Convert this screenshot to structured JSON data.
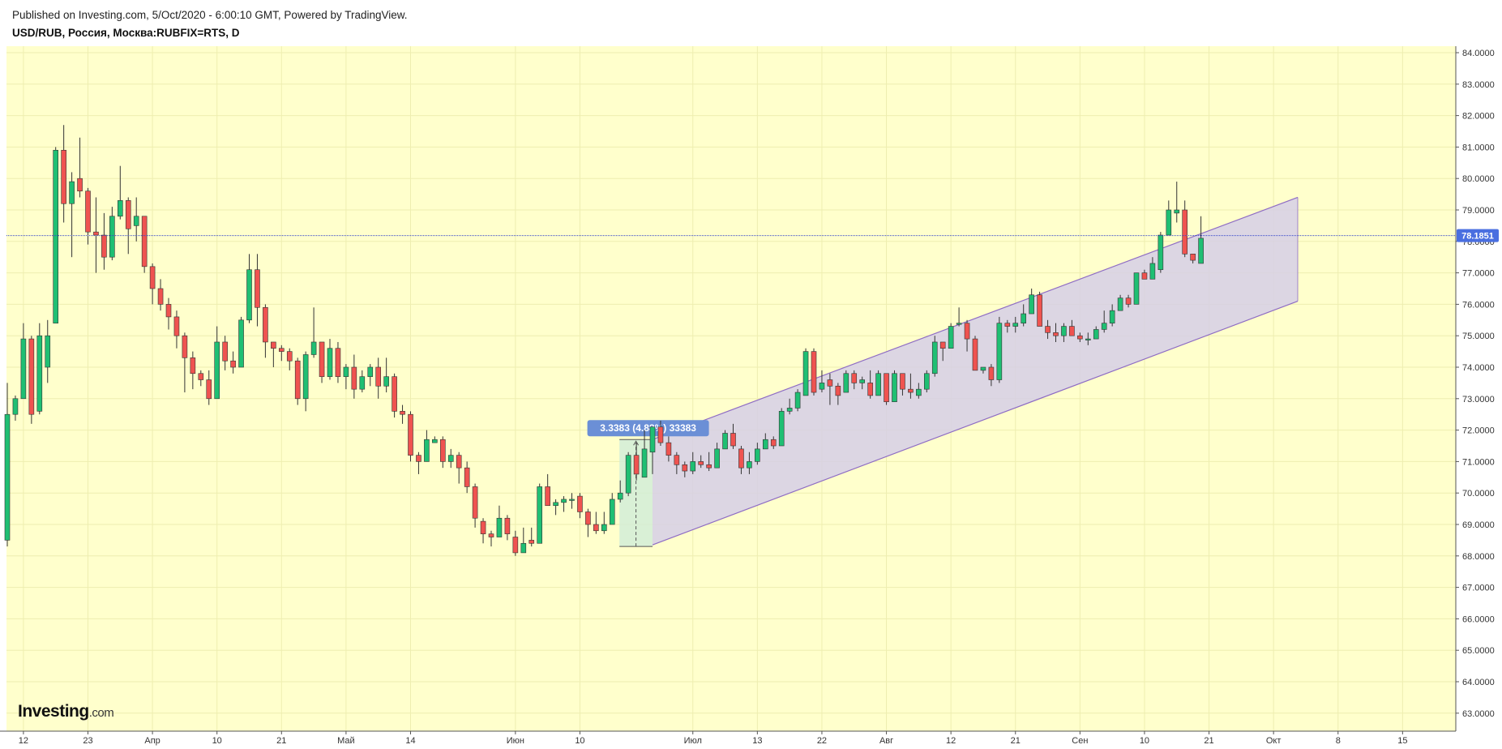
{
  "header": {
    "published": "Published on Investing.com, 5/Oct/2020 - 6:00:10 GMT, Powered by TradingView.",
    "symbol": "USD/RUB, Россия, Москва:RUBFIX=RTS, D"
  },
  "brand": {
    "name": "Investing",
    "suffix": ".com"
  },
  "colors": {
    "background": "#ffffcc",
    "up": "#1fbf73",
    "down": "#ef5350",
    "wick": "#333333",
    "channel_fill": "#d6cfe6",
    "channel_line": "#8e6cc4",
    "price_line": "#3344cc",
    "price_badge": "#4a6fe0",
    "measure_fill": "#d0ecd8",
    "measure_badge": "#6b8fd6"
  },
  "chart_data": {
    "type": "candlestick",
    "interval": "D",
    "ylim": [
      62.6,
      85.1
    ],
    "y_ticks": [
      "63.0000",
      "64.0000",
      "65.0000",
      "66.0000",
      "67.0000",
      "68.0000",
      "69.0000",
      "70.0000",
      "71.0000",
      "72.0000",
      "73.0000",
      "74.0000",
      "75.0000",
      "76.0000",
      "77.0000",
      "78.0000",
      "79.0000",
      "80.0000",
      "81.0000",
      "82.0000",
      "83.0000",
      "84.0000"
    ],
    "x_ticks": [
      {
        "label": "12",
        "i": 2
      },
      {
        "label": "23",
        "i": 10
      },
      {
        "label": "Апр",
        "i": 18
      },
      {
        "label": "10",
        "i": 26
      },
      {
        "label": "21",
        "i": 34
      },
      {
        "label": "Май",
        "i": 42
      },
      {
        "label": "14",
        "i": 50
      },
      {
        "label": "Июн",
        "i": 63
      },
      {
        "label": "10",
        "i": 71
      },
      {
        "label": "Июл",
        "i": 85
      },
      {
        "label": "13",
        "i": 93
      },
      {
        "label": "22",
        "i": 101
      },
      {
        "label": "Авг",
        "i": 109
      },
      {
        "label": "12",
        "i": 117
      },
      {
        "label": "21",
        "i": 125
      },
      {
        "label": "Сен",
        "i": 133
      },
      {
        "label": "10",
        "i": 141
      },
      {
        "label": "21",
        "i": 149
      },
      {
        "label": "Окт",
        "i": 157
      },
      {
        "label": "8",
        "i": 165
      },
      {
        "label": "15",
        "i": 173
      }
    ],
    "ohlc": [
      [
        68.5,
        72.5,
        68.3,
        73.5
      ],
      [
        72.5,
        73.0,
        72.3,
        73.1
      ],
      [
        73.0,
        74.9,
        73.0,
        75.4
      ],
      [
        74.9,
        72.5,
        72.2,
        75.0
      ],
      [
        72.6,
        75.0,
        72.5,
        75.4
      ],
      [
        74.0,
        75.0,
        73.5,
        75.5
      ],
      [
        75.4,
        80.9,
        75.4,
        81.0
      ],
      [
        80.9,
        79.2,
        78.6,
        81.7
      ],
      [
        79.2,
        79.9,
        77.5,
        80.2
      ],
      [
        80.0,
        79.6,
        79.4,
        81.3
      ],
      [
        79.6,
        78.3,
        77.9,
        79.7
      ],
      [
        78.3,
        78.2,
        77.0,
        79.4
      ],
      [
        78.2,
        77.5,
        77.1,
        78.9
      ],
      [
        77.5,
        78.8,
        77.4,
        79.1
      ],
      [
        78.8,
        79.3,
        78.7,
        80.4
      ],
      [
        79.3,
        78.4,
        77.6,
        79.4
      ],
      [
        78.5,
        78.8,
        78.0,
        79.4
      ],
      [
        78.8,
        77.2,
        77.0,
        78.8
      ],
      [
        77.2,
        76.5,
        76.0,
        77.3
      ],
      [
        76.5,
        76.0,
        75.8,
        76.8
      ],
      [
        76.0,
        75.6,
        75.2,
        76.2
      ],
      [
        75.6,
        75.0,
        74.6,
        75.8
      ],
      [
        75.0,
        74.3,
        73.2,
        75.1
      ],
      [
        74.3,
        73.8,
        73.3,
        74.5
      ],
      [
        73.8,
        73.6,
        73.4,
        73.9
      ],
      [
        73.6,
        73.0,
        72.8,
        73.9
      ],
      [
        73.0,
        74.8,
        73.0,
        75.3
      ],
      [
        74.8,
        74.2,
        73.9,
        75.0
      ],
      [
        74.2,
        74.0,
        73.8,
        74.5
      ],
      [
        74.0,
        75.5,
        74.0,
        75.6
      ],
      [
        75.5,
        77.1,
        75.4,
        77.6
      ],
      [
        77.1,
        75.9,
        75.3,
        77.6
      ],
      [
        75.9,
        74.8,
        74.3,
        76.0
      ],
      [
        74.8,
        74.6,
        74.0,
        74.8
      ],
      [
        74.6,
        74.5,
        74.2,
        74.7
      ],
      [
        74.5,
        74.2,
        73.9,
        74.6
      ],
      [
        74.2,
        73.0,
        72.8,
        74.3
      ],
      [
        73.0,
        74.4,
        72.6,
        74.5
      ],
      [
        74.4,
        74.8,
        74.3,
        75.9
      ],
      [
        74.8,
        73.7,
        73.5,
        74.8
      ],
      [
        73.7,
        74.6,
        73.6,
        74.9
      ],
      [
        74.6,
        73.7,
        73.5,
        74.8
      ],
      [
        73.7,
        74.0,
        73.3,
        74.1
      ],
      [
        74.0,
        73.3,
        73.0,
        74.4
      ],
      [
        73.3,
        73.7,
        73.2,
        73.9
      ],
      [
        73.7,
        74.0,
        73.4,
        74.1
      ],
      [
        74.0,
        73.4,
        73.0,
        74.3
      ],
      [
        73.4,
        73.7,
        73.2,
        74.3
      ],
      [
        73.7,
        72.6,
        72.4,
        73.8
      ],
      [
        72.6,
        72.5,
        72.2,
        72.8
      ],
      [
        72.5,
        71.2,
        71.0,
        72.6
      ],
      [
        71.2,
        71.0,
        70.6,
        71.3
      ],
      [
        71.0,
        71.7,
        71.0,
        72.0
      ],
      [
        71.6,
        71.7,
        71.6,
        71.8
      ],
      [
        71.7,
        71.0,
        70.8,
        71.8
      ],
      [
        71.0,
        71.2,
        70.8,
        71.4
      ],
      [
        71.2,
        70.8,
        70.3,
        71.3
      ],
      [
        70.8,
        70.2,
        70.0,
        71.0
      ],
      [
        70.2,
        69.2,
        68.9,
        70.3
      ],
      [
        69.1,
        68.7,
        68.4,
        69.2
      ],
      [
        68.7,
        68.6,
        68.3,
        68.8
      ],
      [
        68.6,
        69.2,
        68.6,
        69.6
      ],
      [
        69.2,
        68.7,
        68.5,
        69.3
      ],
      [
        68.6,
        68.1,
        68.0,
        68.8
      ],
      [
        68.1,
        68.4,
        68.1,
        68.9
      ],
      [
        68.5,
        68.4,
        68.3,
        68.9
      ],
      [
        68.4,
        70.2,
        68.4,
        70.3
      ],
      [
        70.2,
        69.6,
        69.6,
        70.6
      ],
      [
        69.6,
        69.7,
        69.3,
        69.8
      ],
      [
        69.7,
        69.8,
        69.4,
        69.9
      ],
      [
        69.8,
        69.8,
        69.5,
        70.0
      ],
      [
        69.9,
        69.4,
        69.2,
        70.0
      ],
      [
        69.4,
        69.0,
        68.6,
        69.5
      ],
      [
        69.0,
        68.8,
        68.7,
        69.4
      ],
      [
        68.8,
        69.0,
        68.7,
        69.4
      ],
      [
        69.0,
        69.8,
        69.0,
        70.0
      ],
      [
        69.8,
        70.0,
        69.7,
        70.4
      ],
      [
        70.0,
        71.2,
        69.9,
        71.3
      ],
      [
        71.2,
        70.6,
        70.4,
        71.6
      ],
      [
        70.5,
        71.4,
        70.5,
        72.0
      ],
      [
        71.3,
        72.1,
        70.6,
        72.1
      ],
      [
        72.1,
        71.6,
        71.5,
        72.3
      ],
      [
        71.6,
        71.2,
        71.0,
        71.8
      ],
      [
        71.2,
        70.9,
        70.6,
        71.3
      ],
      [
        70.9,
        70.7,
        70.5,
        71.0
      ],
      [
        70.7,
        71.0,
        70.6,
        71.3
      ],
      [
        71.0,
        70.9,
        70.8,
        71.2
      ],
      [
        70.9,
        70.8,
        70.7,
        71.3
      ],
      [
        70.8,
        71.4,
        70.8,
        71.6
      ],
      [
        71.4,
        71.9,
        71.4,
        72.0
      ],
      [
        71.9,
        71.5,
        71.4,
        72.2
      ],
      [
        71.4,
        70.8,
        70.6,
        71.5
      ],
      [
        70.8,
        71.0,
        70.6,
        71.3
      ],
      [
        71.0,
        71.4,
        70.9,
        71.6
      ],
      [
        71.4,
        71.7,
        71.4,
        71.9
      ],
      [
        71.7,
        71.5,
        71.4,
        71.8
      ],
      [
        71.5,
        72.6,
        71.5,
        72.7
      ],
      [
        72.6,
        72.7,
        72.5,
        73.0
      ],
      [
        72.7,
        73.2,
        72.6,
        73.3
      ],
      [
        73.1,
        74.5,
        73.1,
        74.6
      ],
      [
        74.5,
        73.2,
        73.1,
        74.6
      ],
      [
        73.3,
        73.5,
        73.2,
        73.9
      ],
      [
        73.6,
        73.4,
        72.8,
        73.8
      ],
      [
        73.4,
        73.1,
        72.8,
        73.5
      ],
      [
        73.2,
        73.8,
        73.2,
        73.9
      ],
      [
        73.8,
        73.5,
        73.3,
        73.9
      ],
      [
        73.5,
        73.6,
        73.3,
        73.7
      ],
      [
        73.5,
        73.1,
        73.0,
        73.9
      ],
      [
        73.1,
        73.8,
        73.1,
        73.9
      ],
      [
        73.8,
        72.9,
        72.8,
        73.8
      ],
      [
        72.9,
        73.8,
        72.9,
        73.9
      ],
      [
        73.8,
        73.3,
        73.1,
        73.8
      ],
      [
        73.3,
        73.2,
        73.0,
        73.8
      ],
      [
        73.1,
        73.3,
        73.0,
        73.5
      ],
      [
        73.3,
        73.8,
        73.2,
        73.9
      ],
      [
        73.8,
        74.8,
        73.7,
        75.0
      ],
      [
        74.8,
        74.6,
        74.2,
        74.8
      ],
      [
        74.6,
        75.3,
        74.6,
        75.4
      ],
      [
        75.4,
        75.4,
        75.3,
        75.9
      ],
      [
        75.4,
        74.9,
        74.5,
        75.5
      ],
      [
        74.9,
        73.9,
        73.9,
        75.0
      ],
      [
        73.9,
        74.0,
        73.8,
        74.0
      ],
      [
        74.0,
        73.6,
        73.4,
        74.1
      ],
      [
        73.6,
        75.4,
        73.5,
        75.6
      ],
      [
        75.4,
        75.3,
        75.1,
        75.5
      ],
      [
        75.3,
        75.4,
        75.1,
        75.6
      ],
      [
        75.4,
        75.7,
        75.3,
        76.0
      ],
      [
        75.7,
        76.3,
        75.7,
        76.5
      ],
      [
        76.3,
        75.3,
        75.3,
        76.4
      ],
      [
        75.3,
        75.1,
        74.9,
        75.5
      ],
      [
        75.1,
        75.0,
        74.8,
        75.4
      ],
      [
        75.0,
        75.3,
        74.8,
        75.4
      ],
      [
        75.3,
        75.0,
        75.0,
        75.5
      ],
      [
        75.0,
        74.9,
        74.8,
        75.1
      ],
      [
        74.9,
        74.9,
        74.7,
        75.1
      ],
      [
        74.9,
        75.2,
        74.9,
        75.3
      ],
      [
        75.2,
        75.4,
        75.1,
        75.8
      ],
      [
        75.4,
        75.8,
        75.3,
        76.0
      ],
      [
        75.8,
        76.2,
        75.8,
        76.3
      ],
      [
        76.2,
        76.0,
        75.9,
        76.3
      ],
      [
        76.0,
        77.0,
        76.0,
        77.0
      ],
      [
        77.0,
        76.8,
        76.8,
        77.1
      ],
      [
        76.8,
        77.3,
        76.8,
        77.5
      ],
      [
        77.1,
        78.2,
        77.0,
        78.3
      ],
      [
        78.2,
        79.0,
        78.2,
        79.3
      ],
      [
        78.9,
        79.0,
        78.6,
        79.9
      ],
      [
        79.0,
        77.6,
        77.5,
        79.3
      ],
      [
        77.6,
        77.4,
        77.3,
        77.6
      ],
      [
        77.3,
        78.1,
        77.3,
        78.8
      ]
    ],
    "last_price": "78.1851",
    "channel": {
      "start_i": 80,
      "end_i": 160,
      "start_lower": 68.35,
      "end_lower": 76.1,
      "start_upper": 71.7,
      "end_upper": 79.4
    },
    "measure": {
      "label": "3.3383 (4.88%) 33383",
      "start_i": 76,
      "end_i": 80,
      "low": 68.3,
      "high": 71.7
    }
  }
}
